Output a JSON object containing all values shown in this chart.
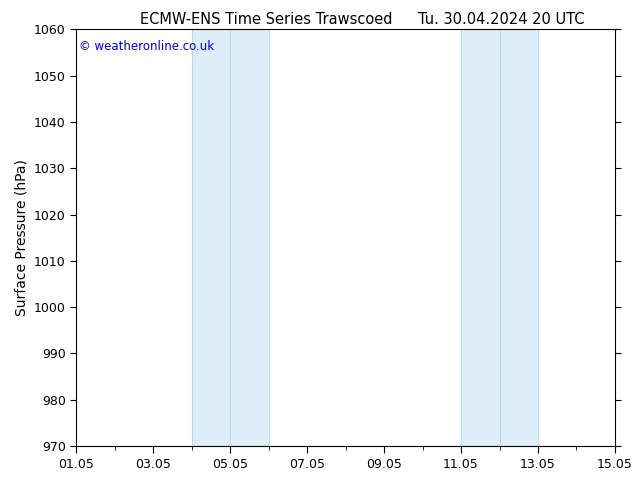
{
  "title_left": "ECMW-ENS Time Series Trawscoed",
  "title_right": "Tu. 30.04.2024 20 UTC",
  "ylabel": "Surface Pressure (hPa)",
  "ylim": [
    970,
    1060
  ],
  "yticks": [
    970,
    980,
    990,
    1000,
    1010,
    1020,
    1030,
    1040,
    1050,
    1060
  ],
  "xlim_start": 0,
  "xlim_end": 14,
  "xtick_positions": [
    0,
    2,
    4,
    6,
    8,
    10,
    12,
    14
  ],
  "xtick_labels": [
    "01.05",
    "03.05",
    "05.05",
    "07.05",
    "09.05",
    "11.05",
    "13.05",
    "15.05"
  ],
  "shaded_bands": [
    {
      "xmin": 3.0,
      "xmax": 4.0,
      "color": "#ddeef8"
    },
    {
      "xmin": 4.0,
      "xmax": 5.0,
      "color": "#ddeef8"
    },
    {
      "xmin": 10.0,
      "xmax": 11.0,
      "color": "#ddeef8"
    },
    {
      "xmin": 11.0,
      "xmax": 12.0,
      "color": "#ddeef8"
    }
  ],
  "watermark_text": "© weatheronline.co.uk",
  "watermark_color": "#0000cc",
  "background_color": "#ffffff",
  "plot_background": "#ffffff",
  "title_fontsize": 10.5,
  "tick_fontsize": 9,
  "ylabel_fontsize": 10,
  "spine_color": "#000000"
}
